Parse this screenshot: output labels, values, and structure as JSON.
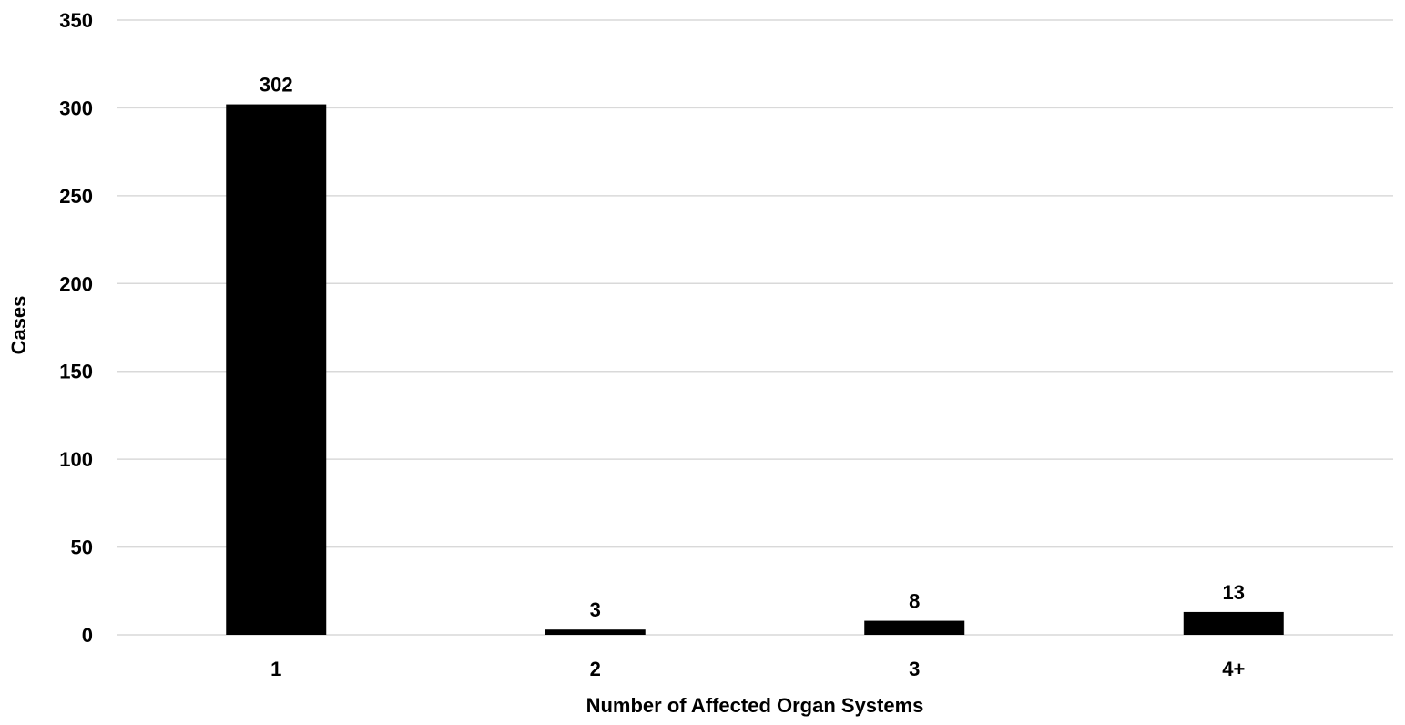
{
  "chart_data": {
    "type": "bar",
    "title": "",
    "xlabel": "Number of Affected Organ Systems",
    "ylabel": "Cases",
    "categories": [
      "1",
      "2",
      "3",
      "4+"
    ],
    "values": [
      302,
      3,
      8,
      13
    ],
    "data_labels": [
      "302",
      "3",
      "8",
      "13"
    ],
    "ylim": [
      0,
      350
    ],
    "yticks": [
      0,
      50,
      100,
      150,
      200,
      250,
      300,
      350
    ],
    "grid": true,
    "legend": "none",
    "bar_color": "#000000",
    "grid_color": "#d9d9d9"
  }
}
